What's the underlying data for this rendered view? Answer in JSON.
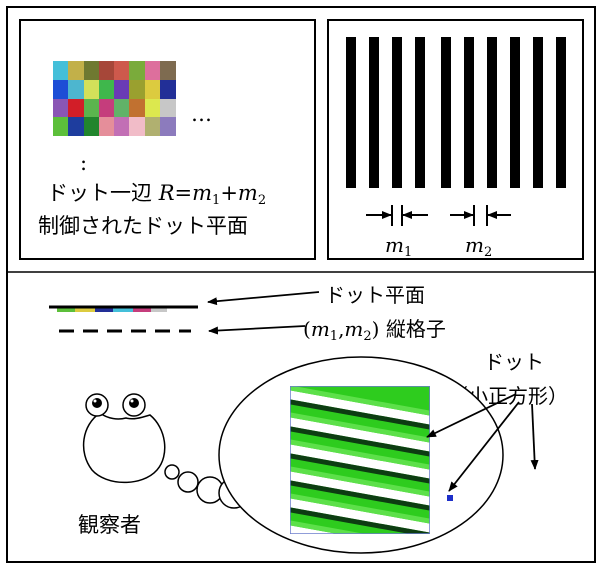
{
  "top_left": {
    "ellipsis": "…",
    "vdots": ":",
    "line1_prefix": "ドット一辺 ",
    "line1_R": "R",
    "line1_eq": "=",
    "line1_m": "m",
    "line1_sub1": "1",
    "line1_plus": "+",
    "line1_sub2": "2",
    "line2": "制御されたドット平面",
    "palette": [
      "#44bfd9",
      "#c2b049",
      "#6f7931",
      "#a64739",
      "#ce594c",
      "#7aab3b",
      "#dd6f9d",
      "#7e6b50",
      "#1d4ed6",
      "#4db6cf",
      "#d3e05a",
      "#3fb74c",
      "#6a3bb5",
      "#9aa02f",
      "#dccb3f",
      "#222f97",
      "#8a56b5",
      "#d21e28",
      "#5bb54e",
      "#c53d7c",
      "#61b268",
      "#c17130",
      "#dce84e",
      "#c7c7c7",
      "#5cbf3a",
      "#1e3d9e",
      "#21852d",
      "#e58e9a",
      "#c26fb5",
      "#f1bcc8",
      "#b0b070",
      "#8c7bbd"
    ]
  },
  "top_right": {
    "m1_label": "m",
    "m1_sub": "1",
    "m2_label": "m",
    "m2_sub": "2"
  },
  "bottom": {
    "label_dot_plane": "ドット平面",
    "label_grating_open": "(",
    "label_grating_m1": "m",
    "label_grating_sub1": "1",
    "label_grating_comma": ",",
    "label_grating_m2": "m",
    "label_grating_sub2": "2",
    "label_grating_close": ")",
    "label_grating_word": " 縦格子",
    "label_dot": "ドット",
    "label_square": "（小正方形）",
    "observer": "観察者"
  }
}
